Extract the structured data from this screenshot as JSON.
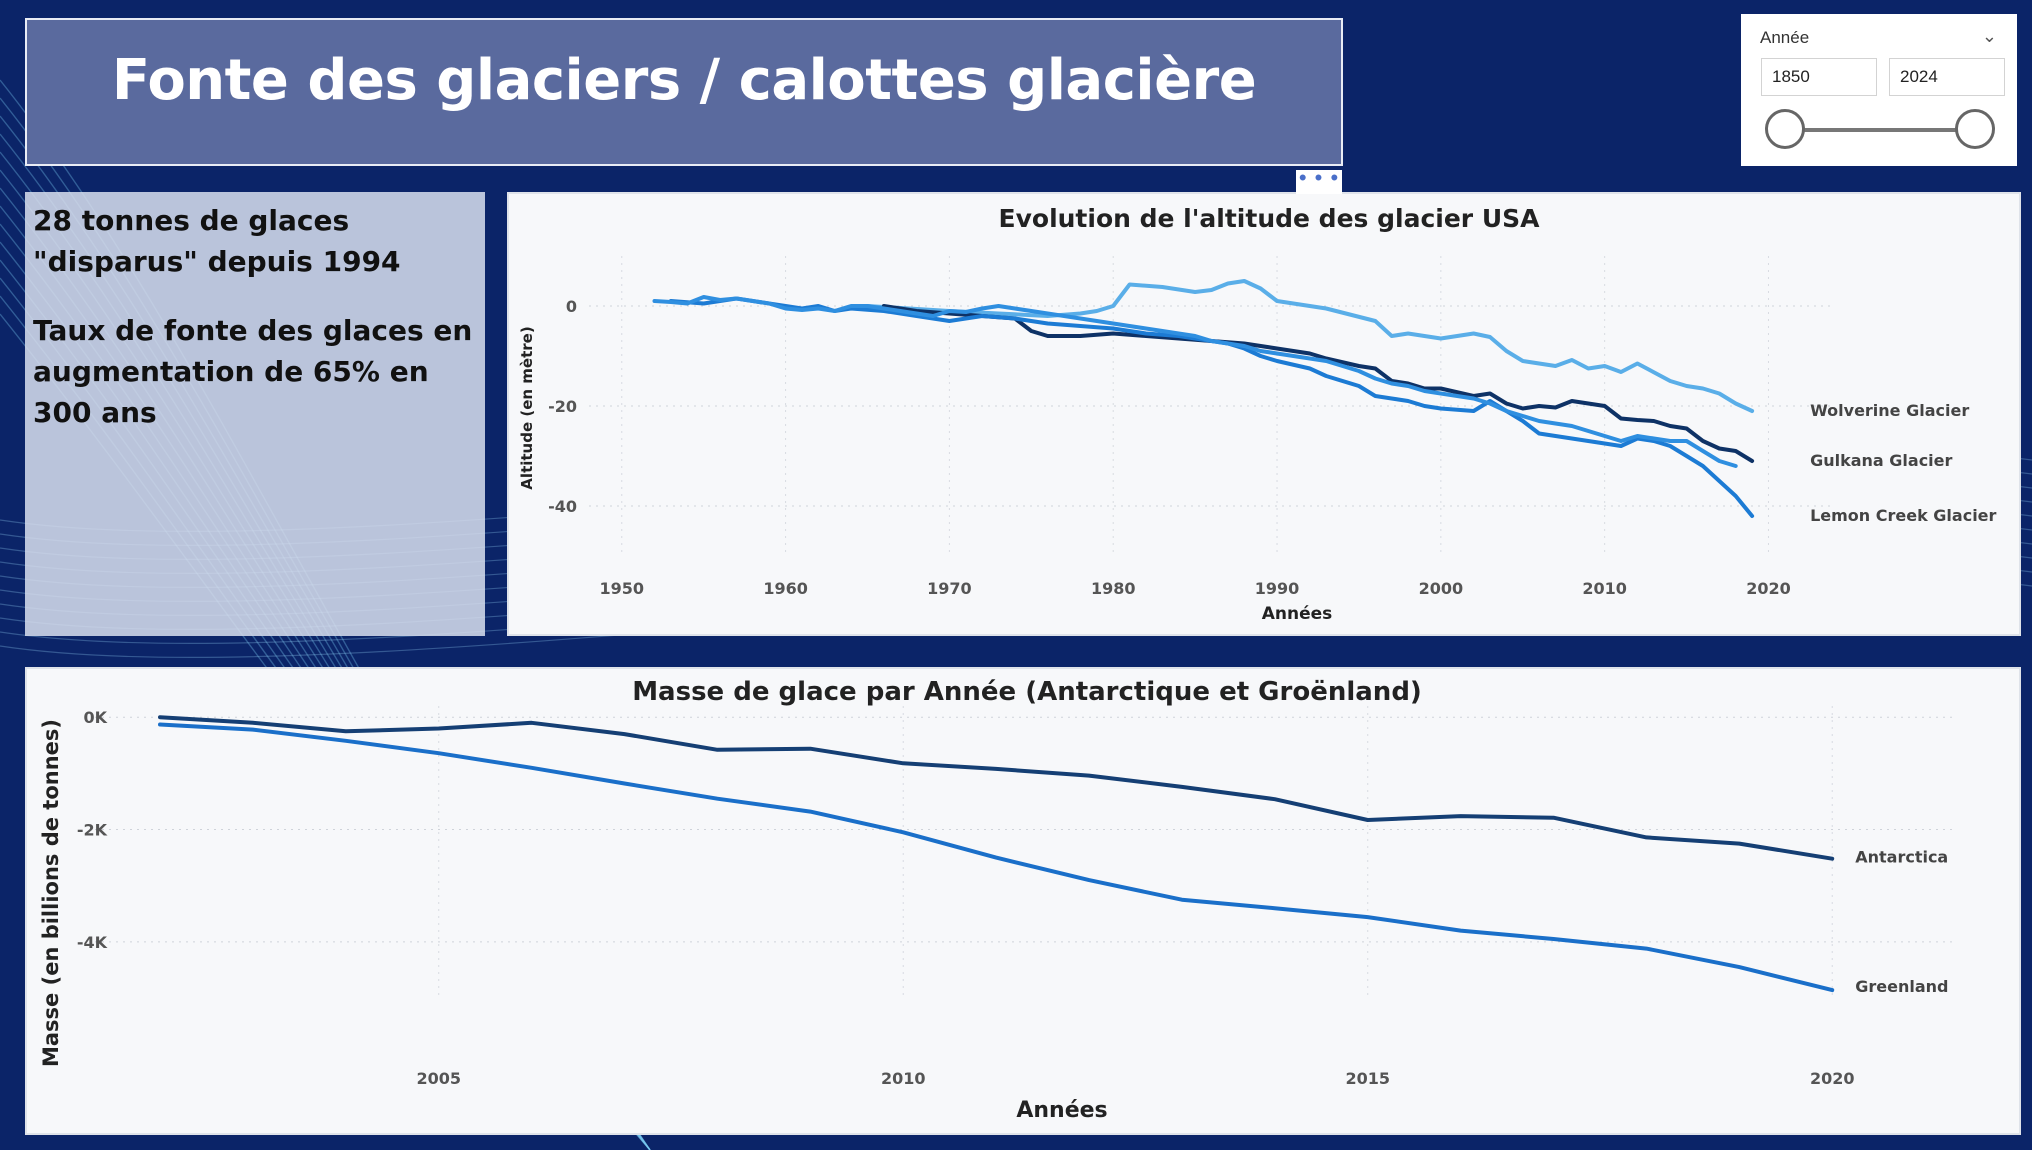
{
  "title": "Fonte des glaciers / calottes glacière",
  "slicer": {
    "label": "Année",
    "from": "1850",
    "to": "2024"
  },
  "kpi": {
    "line1": "28 tonnes de glaces \"disparus\" depuis 1994",
    "line2": "Taux de fonte des glaces en augmentation de 65% en 300 ans"
  },
  "more_options": "• • •",
  "colors": {
    "background": "#0b2468",
    "title_box": "#5a6a9e"
  },
  "chart_data": [
    {
      "type": "line",
      "title": "Evolution de l'altitude des glacier USA",
      "xlabel": "Années",
      "ylabel": "Altitude (en mètre)",
      "xlim": [
        1948,
        2024
      ],
      "ylim": [
        -50,
        10
      ],
      "xticks": [
        1950,
        1960,
        1970,
        1980,
        1990,
        2000,
        2010,
        2020
      ],
      "yticks": [
        0,
        -20,
        -40
      ],
      "legend": "right, end of lines",
      "series": [
        {
          "name": "Wolverine Glacier",
          "color": "#5aaee8",
          "x": [
            1965,
            1970,
            1973,
            1976,
            1978,
            1979,
            1980,
            1981,
            1983,
            1985,
            1986,
            1987,
            1988,
            1989,
            1990,
            1993,
            1996,
            1997,
            1998,
            2000,
            2002,
            2003,
            2004,
            2005,
            2007,
            2008,
            2009,
            2010,
            2011,
            2012,
            2014,
            2015,
            2016,
            2017,
            2018,
            2019
          ],
          "y": [
            0,
            -1,
            -1.5,
            -2,
            -1.5,
            -1,
            0,
            4.3,
            3.8,
            2.8,
            3.2,
            4.5,
            5,
            3.5,
            1,
            -0.5,
            -3,
            -6,
            -5.5,
            -6.5,
            -5.5,
            -6.2,
            -9,
            -11,
            -12,
            -10.8,
            -12.5,
            -12,
            -13.2,
            -11.5,
            -15,
            -16,
            -16.5,
            -17.5,
            -19.5,
            -21
          ]
        },
        {
          "name": "Gulkana Glacier",
          "color": "#0e3266",
          "x": [
            1966,
            1968,
            1970,
            1972,
            1974,
            1975,
            1976,
            1978,
            1980,
            1982,
            1984,
            1986,
            1988,
            1990,
            1992,
            1993,
            1995,
            1996,
            1997,
            1998,
            1999,
            2000,
            2002,
            2003,
            2004,
            2005,
            2006,
            2007,
            2008,
            2010,
            2011,
            2012,
            2013,
            2014,
            2015,
            2016,
            2017,
            2018,
            2019
          ],
          "y": [
            0,
            -1,
            -1.5,
            -2,
            -2.5,
            -5,
            -6,
            -6,
            -5.5,
            -6,
            -6.5,
            -7,
            -7.5,
            -8.5,
            -9.5,
            -10.5,
            -12,
            -12.5,
            -15,
            -15.5,
            -16.5,
            -16.5,
            -18,
            -17.5,
            -19.5,
            -20.5,
            -20,
            -20.3,
            -19,
            -20,
            -22.5,
            -22.8,
            -23,
            -24,
            -24.5,
            -27,
            -28.5,
            -29,
            -31
          ]
        },
        {
          "name": "Lemon Creek Glacier",
          "color": "#1c7bd4",
          "x": [
            1953,
            1955,
            1957,
            1958,
            1960,
            1961,
            1962,
            1963,
            1964,
            1966,
            1968,
            1970,
            1972,
            1974,
            1976,
            1978,
            1980,
            1982,
            1984,
            1986,
            1987,
            1988,
            1989,
            1990,
            1992,
            1993,
            1995,
            1996,
            1997,
            1998,
            1999,
            2000,
            2002,
            2003,
            2004,
            2005,
            2006,
            2007,
            2008,
            2009,
            2010,
            2011,
            2012,
            2013,
            2014,
            2015,
            2016,
            2017,
            2018,
            2019
          ],
          "y": [
            1,
            0.5,
            1.5,
            1,
            0,
            -0.5,
            0,
            -1,
            -0.5,
            -1,
            -2,
            -3,
            -2,
            -2.5,
            -3.5,
            -4,
            -4.5,
            -5.5,
            -6,
            -7,
            -7.5,
            -8.5,
            -10,
            -11,
            -12.5,
            -14,
            -16,
            -18,
            -18.5,
            -19,
            -20,
            -20.5,
            -21,
            -19,
            -21,
            -23,
            -25.5,
            -26,
            -26.5,
            -27,
            -27.5,
            -28,
            -26.5,
            -27,
            -28,
            -30,
            -32,
            -35,
            -38,
            -42
          ]
        },
        {
          "name": "",
          "color": "#2f8fe0",
          "x": [
            1952,
            1953,
            1954,
            1955,
            1956,
            1957,
            1958,
            1959,
            1960,
            1961,
            1962,
            1963,
            1964,
            1965,
            1966,
            1967,
            1968,
            1969,
            1970,
            1971,
            1972,
            1973,
            1974,
            1975,
            1976,
            1977,
            1978,
            1979,
            1980,
            1981,
            1982,
            1983,
            1984,
            1985,
            1986,
            1987,
            1988,
            1989,
            1990,
            1991,
            1992,
            1993,
            1994,
            1995,
            1996,
            1997,
            1998,
            1999,
            2000,
            2001,
            2002,
            2003,
            2004,
            2005,
            2006,
            2007,
            2008,
            2009,
            2010,
            2011,
            2012,
            2013,
            2014,
            2015,
            2016,
            2017,
            2018
          ],
          "y": [
            1,
            0.8,
            0.5,
            1.8,
            1.2,
            1.5,
            1,
            0.5,
            -0.5,
            -0.8,
            -0.5,
            -1,
            0,
            0,
            -0.5,
            -1,
            -1.5,
            -2,
            -1,
            -1.2,
            -0.5,
            0,
            -0.5,
            -1,
            -1.5,
            -2,
            -2.5,
            -3,
            -3.5,
            -4,
            -4.5,
            -5,
            -5.5,
            -6,
            -7,
            -7.5,
            -8,
            -9,
            -9.5,
            -10,
            -10.5,
            -11,
            -12,
            -13,
            -14.5,
            -15.5,
            -16,
            -17,
            -17.5,
            -18,
            -18.5,
            -19.5,
            -21,
            -22,
            -23,
            -23.5,
            -24,
            -25,
            -26,
            -27,
            -26,
            -26.5,
            -27,
            -27,
            -29,
            -31,
            -32
          ]
        }
      ]
    },
    {
      "type": "line",
      "title": "Masse de glace par Année (Antarctique et Groënland)",
      "xlabel": "Années",
      "ylabel": "Masse (en billions de tonnes)",
      "xlim": [
        2001.3,
        2021.3
      ],
      "ylim": [
        -5000,
        200
      ],
      "xticks": [
        2005,
        2010,
        2015,
        2020
      ],
      "yticks": [
        0,
        -2000,
        -4000
      ],
      "ytick_labels": [
        "0K",
        "-2K",
        "-4K"
      ],
      "legend": "right, end of lines",
      "series": [
        {
          "name": "Antarctica",
          "color": "#153f74",
          "x": [
            2002,
            2003,
            2004,
            2005,
            2006,
            2007,
            2008,
            2009,
            2010,
            2011,
            2012,
            2013,
            2014,
            2015,
            2016,
            2017,
            2018,
            2019,
            2020
          ],
          "y": [
            0,
            -100,
            -250,
            -200,
            -100,
            -300,
            -580,
            -560,
            -820,
            -920,
            -1040,
            -1240,
            -1460,
            -1830,
            -1760,
            -1790,
            -2140,
            -2250,
            -2520
          ]
        },
        {
          "name": "Greenland",
          "color": "#1a6fc9",
          "x": [
            2002,
            2003,
            2004,
            2005,
            2006,
            2007,
            2008,
            2009,
            2010,
            2011,
            2012,
            2013,
            2014,
            2015,
            2016,
            2017,
            2018,
            2019,
            2020
          ],
          "y": [
            -130,
            -220,
            -420,
            -640,
            -900,
            -1180,
            -1450,
            -1680,
            -2050,
            -2500,
            -2900,
            -3250,
            -3400,
            -3560,
            -3800,
            -3950,
            -4120,
            -4450,
            -4860
          ]
        }
      ]
    }
  ]
}
